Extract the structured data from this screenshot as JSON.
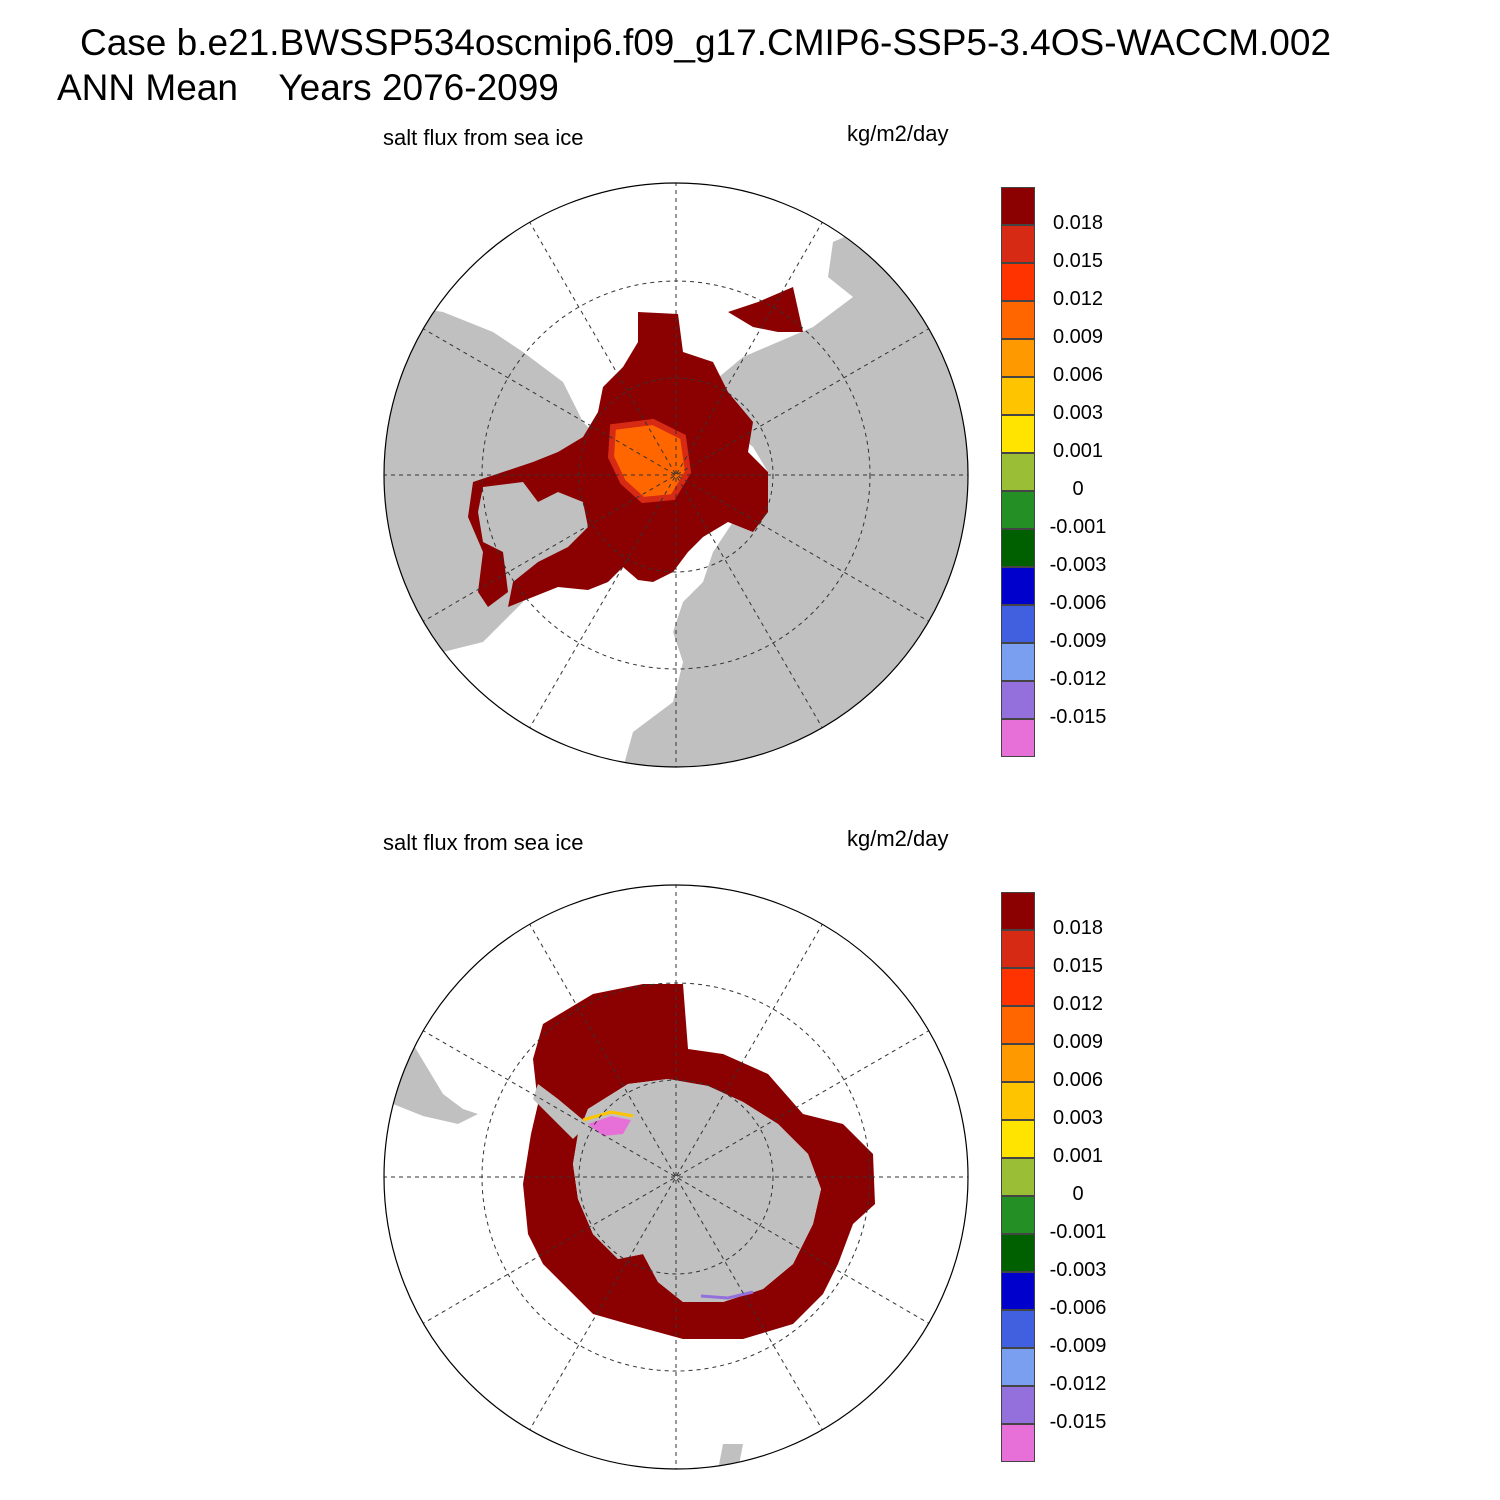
{
  "header": {
    "line1": "Case b.e21.BWSSP534oscmip6.f09_g17.CMIP6-SSP5-3.4OS-WACCM.002",
    "line2": "ANN Mean    Years 2076-2099"
  },
  "colorbar": {
    "colors": [
      "#8b0000",
      "#d62a14",
      "#ff3300",
      "#ff6600",
      "#ff9900",
      "#ffc400",
      "#ffe400",
      "#9bbe37",
      "#248f24",
      "#006000",
      "#0000cc",
      "#4060e0",
      "#7b9ff0",
      "#9370db",
      "#e670d8"
    ],
    "labels": [
      "0.018",
      "0.015",
      "0.012",
      "0.009",
      "0.006",
      "0.003",
      "0.001",
      "0",
      "-0.001",
      "-0.003",
      "-0.006",
      "-0.009",
      "-0.012",
      "-0.015"
    ]
  },
  "panels": [
    {
      "id": "north",
      "title": "salt flux from sea ice",
      "units": "kg/m2/day",
      "hemisphere": "Northern Hemisphere polar stereographic",
      "land_color": "#c0c0c0",
      "ice_color": "#8b0000"
    },
    {
      "id": "south",
      "title": "salt flux from sea ice",
      "units": "kg/m2/day",
      "hemisphere": "Southern Hemisphere polar stereographic",
      "land_color": "#c0c0c0",
      "ice_color": "#8b0000"
    }
  ]
}
